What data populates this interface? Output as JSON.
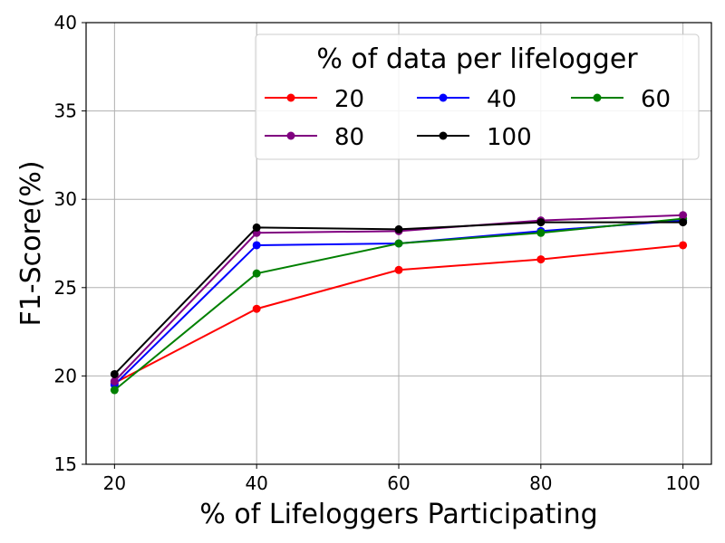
{
  "chart_data": {
    "type": "line",
    "xlabel": "% of Lifeloggers Participating",
    "ylabel": "F1-Score(%)",
    "x": [
      20,
      40,
      60,
      80,
      100
    ],
    "xticks": [
      "20",
      "40",
      "60",
      "80",
      "100"
    ],
    "yticks": [
      "15",
      "20",
      "25",
      "30",
      "35",
      "40"
    ],
    "xlim": [
      16,
      104
    ],
    "ylim": [
      15,
      40
    ],
    "grid": true,
    "legend": {
      "title": "% of data per lifelogger",
      "placement": "upper-right",
      "columns": 3
    },
    "series": [
      {
        "name": "20",
        "color": "#ff0000",
        "values": [
          19.6,
          23.8,
          26.0,
          26.6,
          27.4
        ]
      },
      {
        "name": "40",
        "color": "#0000ff",
        "values": [
          19.5,
          27.4,
          27.5,
          28.2,
          28.8
        ]
      },
      {
        "name": "60",
        "color": "#008000",
        "values": [
          19.2,
          25.8,
          27.5,
          28.1,
          28.9
        ]
      },
      {
        "name": "80",
        "color": "#800080",
        "values": [
          19.7,
          28.1,
          28.2,
          28.8,
          29.1
        ]
      },
      {
        "name": "100",
        "color": "#000000",
        "values": [
          20.1,
          28.4,
          28.3,
          28.7,
          28.7
        ]
      }
    ]
  }
}
